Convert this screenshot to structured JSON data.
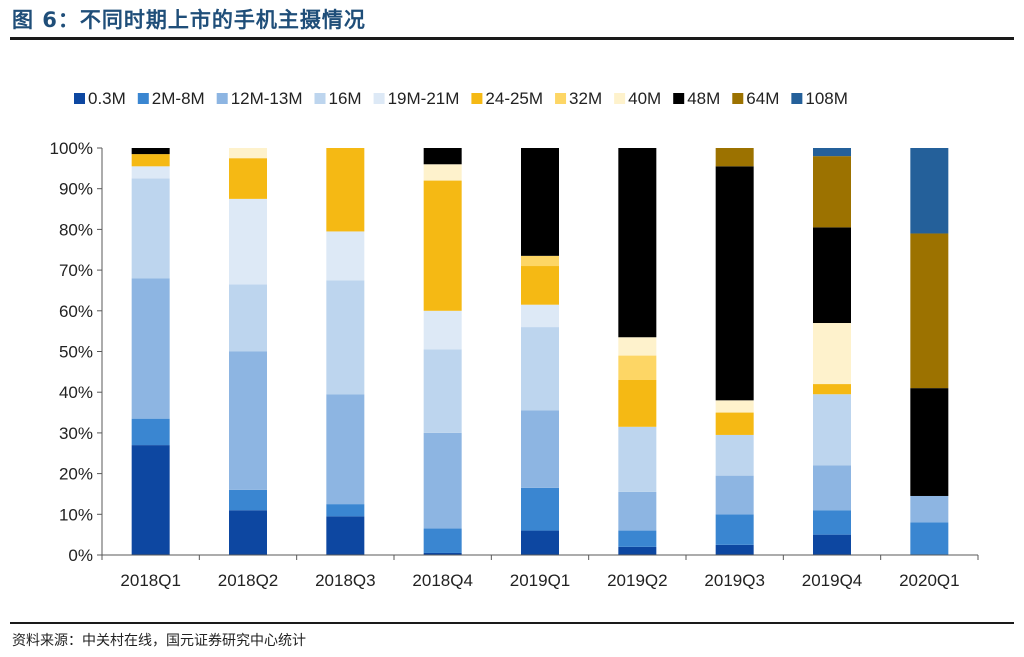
{
  "figure": {
    "title": "图 6：不同时期上市的手机主摄情况",
    "source": "资料来源：中关村在线，国元证券研究中心统计"
  },
  "chart_data": {
    "type": "bar",
    "stacked": true,
    "percent": true,
    "categories": [
      "2018Q1",
      "2018Q2",
      "2018Q3",
      "2018Q4",
      "2019Q1",
      "2019Q2",
      "2019Q3",
      "2019Q4",
      "2020Q1"
    ],
    "ylim": [
      0,
      100
    ],
    "y_ticks": [
      "0%",
      "10%",
      "20%",
      "30%",
      "40%",
      "50%",
      "60%",
      "70%",
      "80%",
      "90%",
      "100%"
    ],
    "legend_position": "top",
    "grid": false,
    "series": [
      {
        "name": "0.3M",
        "color": "#0d47a1",
        "values": [
          27,
          11,
          9.5,
          0.5,
          6,
          2,
          2.5,
          5,
          0
        ]
      },
      {
        "name": "2M-8M",
        "color": "#3a86d1",
        "values": [
          6.5,
          5,
          3,
          6,
          10.5,
          4,
          7.5,
          6,
          8
        ]
      },
      {
        "name": "12M-13M",
        "color": "#8db5e2",
        "values": [
          34.5,
          34,
          27,
          23.5,
          19,
          9.5,
          9.5,
          11,
          6.5
        ]
      },
      {
        "name": "16M",
        "color": "#bdd5ee",
        "values": [
          24.5,
          16.5,
          28,
          20.5,
          20.5,
          16,
          10,
          17.5,
          0
        ]
      },
      {
        "name": "19M-21M",
        "color": "#dde9f6",
        "values": [
          3,
          21,
          12,
          9.5,
          5.5,
          0,
          0,
          0,
          0
        ]
      },
      {
        "name": "24-25M",
        "color": "#f5b914",
        "values": [
          3,
          10,
          20.5,
          32,
          9.5,
          11.5,
          5.5,
          2.5,
          0
        ]
      },
      {
        "name": "32M",
        "color": "#fdd665",
        "values": [
          0,
          0,
          0,
          0,
          2.5,
          6,
          0,
          0,
          0
        ]
      },
      {
        "name": "40M",
        "color": "#fef2cc",
        "values": [
          0,
          2.5,
          0,
          4,
          0,
          4.5,
          3,
          15,
          0
        ]
      },
      {
        "name": "48M",
        "color": "#000000",
        "values": [
          1.5,
          0,
          0,
          4,
          26.5,
          46.5,
          57.5,
          23.5,
          26.5
        ]
      },
      {
        "name": "64M",
        "color": "#9c7200",
        "values": [
          0,
          0,
          0,
          0,
          0,
          0,
          4.5,
          17.5,
          38
        ]
      },
      {
        "name": "108M",
        "color": "#24609a",
        "values": [
          0,
          0,
          0,
          0,
          0,
          0,
          0,
          2,
          21
        ]
      }
    ]
  }
}
